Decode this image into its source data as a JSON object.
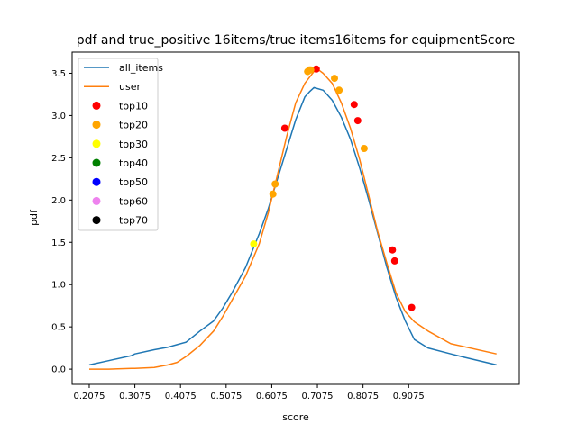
{
  "chart_data": {
    "type": "line",
    "title": "pdf and true_positive 16items/true items16items for equipmentScore",
    "xlabel": "score",
    "ylabel": "pdf",
    "xlim": [
      0.17,
      1.15
    ],
    "ylim": [
      -0.18,
      3.75
    ],
    "xticks": [
      0.2075,
      0.3075,
      0.4075,
      0.5075,
      0.6075,
      0.7075,
      0.8075,
      0.9075
    ],
    "xtick_labels": [
      "0.2075",
      "0.3075",
      "0.4075",
      "0.5075",
      "0.6075",
      "0.7075",
      "0.8075",
      "0.9075"
    ],
    "yticks": [
      0.0,
      0.5,
      1.0,
      1.5,
      2.0,
      2.5,
      3.0,
      3.5
    ],
    "ytick_labels": [
      "0.0",
      "0.5",
      "1.0",
      "1.5",
      "2.0",
      "2.5",
      "3.0",
      "3.5"
    ],
    "grid": false,
    "legend_position": "top-left",
    "series": [
      {
        "name": "all_items",
        "kind": "line",
        "color": "#1f77b4",
        "x": [
          0.2075,
          0.25,
          0.3,
          0.3075,
          0.35,
          0.38,
          0.4,
          0.42,
          0.45,
          0.48,
          0.5,
          0.52,
          0.55,
          0.58,
          0.6,
          0.62,
          0.64,
          0.66,
          0.68,
          0.69,
          0.7,
          0.72,
          0.74,
          0.76,
          0.78,
          0.8,
          0.82,
          0.84,
          0.86,
          0.88,
          0.9,
          0.92,
          0.95,
          1.0,
          1.03,
          1.1
        ],
        "y": [
          0.05,
          0.1,
          0.16,
          0.18,
          0.23,
          0.26,
          0.29,
          0.32,
          0.45,
          0.57,
          0.72,
          0.9,
          1.2,
          1.6,
          1.9,
          2.25,
          2.6,
          2.95,
          3.22,
          3.28,
          3.33,
          3.3,
          3.18,
          2.98,
          2.72,
          2.38,
          2.0,
          1.6,
          1.2,
          0.85,
          0.57,
          0.35,
          0.25,
          0.18,
          0.14,
          0.05
        ]
      },
      {
        "name": "user",
        "kind": "line",
        "color": "#ff7f0e",
        "x": [
          0.2075,
          0.25,
          0.3,
          0.3075,
          0.35,
          0.38,
          0.4,
          0.42,
          0.45,
          0.48,
          0.5,
          0.55,
          0.58,
          0.6,
          0.62,
          0.64,
          0.66,
          0.68,
          0.7,
          0.71,
          0.72,
          0.74,
          0.76,
          0.78,
          0.8,
          0.82,
          0.84,
          0.86,
          0.88,
          0.9,
          0.92,
          0.95,
          1.0,
          1.1
        ],
        "y": [
          0.0,
          0.0,
          0.01,
          0.01,
          0.02,
          0.05,
          0.08,
          0.15,
          0.28,
          0.45,
          0.62,
          1.1,
          1.48,
          1.85,
          2.3,
          2.75,
          3.15,
          3.38,
          3.52,
          3.54,
          3.5,
          3.38,
          3.15,
          2.85,
          2.48,
          2.05,
          1.62,
          1.25,
          0.9,
          0.68,
          0.56,
          0.45,
          0.3,
          0.18
        ]
      },
      {
        "name": "top10",
        "kind": "scatter",
        "color": "#ff0000",
        "x": [
          0.636,
          0.705,
          0.788,
          0.796,
          0.872,
          0.877,
          0.914
        ],
        "y": [
          2.85,
          3.55,
          3.13,
          2.94,
          1.41,
          1.28,
          0.73
        ]
      },
      {
        "name": "top20",
        "kind": "scatter",
        "color": "#ffa500",
        "x": [
          0.61,
          0.615,
          0.686,
          0.69,
          0.693,
          0.745,
          0.755,
          0.81
        ],
        "y": [
          2.07,
          2.19,
          3.52,
          3.54,
          3.54,
          3.44,
          3.3,
          2.61
        ]
      },
      {
        "name": "top30",
        "kind": "scatter",
        "color": "#ffff00",
        "x": [
          0.568
        ],
        "y": [
          1.48
        ]
      },
      {
        "name": "top40",
        "kind": "scatter",
        "color": "#008000",
        "x": [],
        "y": []
      },
      {
        "name": "top50",
        "kind": "scatter",
        "color": "#0000ff",
        "x": [],
        "y": []
      },
      {
        "name": "top60",
        "kind": "scatter",
        "color": "#ee82ee",
        "x": [],
        "y": []
      },
      {
        "name": "top70",
        "kind": "scatter",
        "color": "#000000",
        "x": [],
        "y": []
      }
    ]
  }
}
